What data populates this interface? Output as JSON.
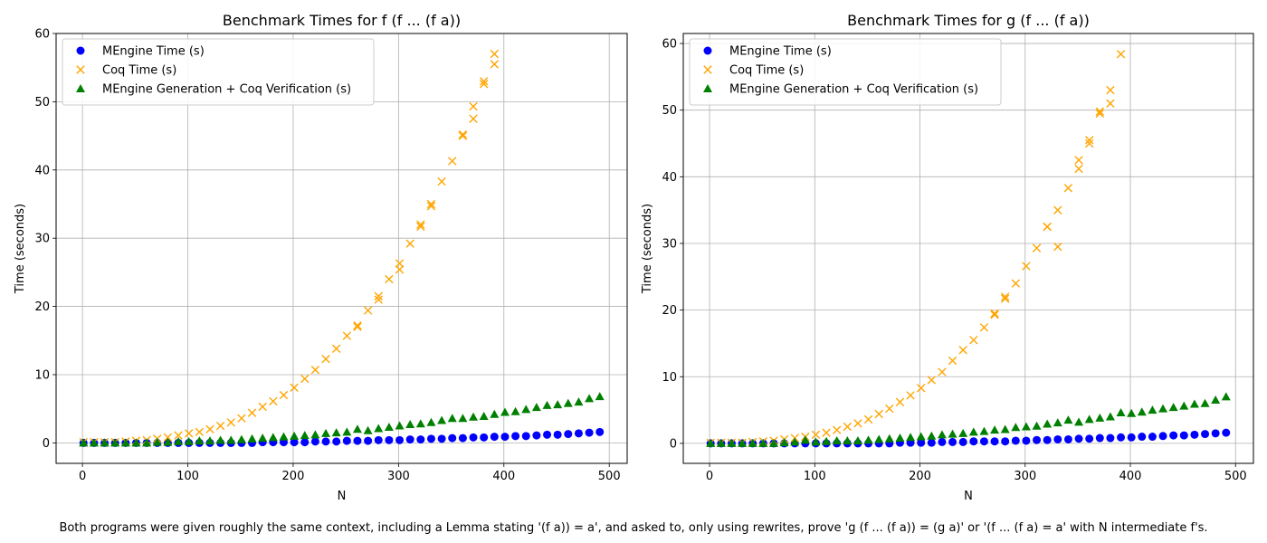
{
  "figure": {
    "caption": "Both programs were given roughly the same context, including a Lemma stating '(f a)) = a', and asked to, only using rewrites, prove 'g (f ... (f a)) = (g a)' or '(f ... (f a) = a' with N intermediate f's."
  },
  "chart_data": [
    {
      "type": "scatter",
      "title": "Benchmark Times for f (f ... (f a))",
      "xlabel": "N",
      "ylabel": "Time (seconds)",
      "xlim": [
        -25,
        517
      ],
      "ylim": [
        -3,
        60
      ],
      "xticks": [
        0,
        100,
        200,
        300,
        400,
        500
      ],
      "yticks": [
        0,
        10,
        20,
        30,
        40,
        50,
        60
      ],
      "grid": true,
      "legend_position": "upper-left",
      "x": [
        1,
        11,
        21,
        31,
        41,
        51,
        61,
        71,
        81,
        91,
        101,
        111,
        121,
        131,
        141,
        151,
        161,
        171,
        181,
        191,
        201,
        211,
        221,
        231,
        241,
        251,
        261,
        271,
        281,
        291,
        301,
        311,
        321,
        331,
        341,
        351,
        361,
        371,
        381,
        391,
        401,
        411,
        421,
        431,
        441,
        451,
        461,
        471,
        481,
        491
      ],
      "series": [
        {
          "name": "MEngine Time (s)",
          "marker": "circle",
          "color": "#0000ff",
          "values": [
            0,
            0,
            0,
            0,
            0,
            0,
            0,
            0,
            0,
            0,
            0,
            0,
            0,
            0,
            0,
            0,
            0,
            0.1,
            0.1,
            0.1,
            0.1,
            0.1,
            0.2,
            0.2,
            0.2,
            0.3,
            0.3,
            0.3,
            0.4,
            0.4,
            0.4,
            0.5,
            0.5,
            0.6,
            0.6,
            0.7,
            0.7,
            0.8,
            0.8,
            0.9,
            0.9,
            1.0,
            1.0,
            1.1,
            1.2,
            1.2,
            1.3,
            1.4,
            1.5,
            1.6
          ]
        },
        {
          "name": "Coq Time (s)",
          "marker": "x",
          "color": "#ffa500",
          "values": [
            0.1,
            0.1,
            0.1,
            0.1,
            0.2,
            0.3,
            0.4,
            0.6,
            0.8,
            1.1,
            1.4,
            1.6,
            2.0,
            2.5,
            3.0,
            3.6,
            4.4,
            5.3,
            6.1,
            7.0,
            8.1,
            9.4,
            10.7,
            12.3,
            13.8,
            15.7,
            17.2,
            19.4,
            21.5,
            24.0,
            26.3,
            29.2,
            32.0,
            35.0,
            38.3,
            41.3,
            45.2,
            49.3,
            53.0,
            57.0,
            null,
            null,
            null,
            null,
            null,
            null,
            null,
            null,
            null,
            null
          ]
        },
        {
          "name": "MEngine Generation + Coq Verification (s)",
          "marker": "triangle",
          "color": "#008000",
          "values": [
            0,
            0,
            0,
            0,
            0,
            0,
            0,
            0.1,
            0.1,
            0.2,
            0.2,
            0.3,
            0.3,
            0.4,
            0.4,
            0.5,
            0.6,
            0.7,
            0.8,
            0.9,
            1.0,
            1.1,
            1.2,
            1.4,
            1.5,
            1.6,
            2.0,
            1.8,
            2.1,
            2.3,
            2.5,
            2.7,
            2.8,
            3.0,
            3.3,
            3.6,
            3.6,
            3.8,
            3.9,
            4.2,
            4.5,
            4.6,
            4.9,
            5.2,
            5.5,
            5.6,
            5.8,
            6.0,
            6.5,
            6.8
          ]
        },
        {
          "name": "Coq Time (s) repeat",
          "marker": "x",
          "color": "#ffa500",
          "in_legend": false,
          "values": [
            null,
            null,
            null,
            null,
            null,
            null,
            null,
            null,
            null,
            null,
            null,
            null,
            null,
            null,
            null,
            null,
            null,
            null,
            null,
            null,
            null,
            null,
            null,
            null,
            null,
            null,
            17.0,
            null,
            21.0,
            null,
            25.4,
            null,
            31.7,
            34.7,
            null,
            null,
            45.0,
            47.5,
            52.6,
            55.5,
            null,
            null,
            null,
            null,
            null,
            null,
            null,
            null,
            null,
            null
          ]
        }
      ]
    },
    {
      "type": "scatter",
      "title": "Benchmark Times for g (f ... (f a))",
      "xlabel": "N",
      "ylabel": "Time (seconds)",
      "xlim": [
        -25,
        517
      ],
      "ylim": [
        -3,
        61.5
      ],
      "xticks": [
        0,
        100,
        200,
        300,
        400,
        500
      ],
      "yticks": [
        0,
        10,
        20,
        30,
        40,
        50,
        60
      ],
      "grid": true,
      "legend_position": "upper-left",
      "x": [
        1,
        11,
        21,
        31,
        41,
        51,
        61,
        71,
        81,
        91,
        101,
        111,
        121,
        131,
        141,
        151,
        161,
        171,
        181,
        191,
        201,
        211,
        221,
        231,
        241,
        251,
        261,
        271,
        281,
        291,
        301,
        311,
        321,
        331,
        341,
        351,
        361,
        371,
        381,
        391,
        401,
        411,
        421,
        431,
        441,
        451,
        461,
        471,
        481,
        491
      ],
      "series": [
        {
          "name": "MEngine Time (s)",
          "marker": "circle",
          "color": "#0000ff",
          "values": [
            0,
            0,
            0,
            0,
            0,
            0,
            0,
            0,
            0,
            0,
            0,
            0,
            0,
            0,
            0,
            0,
            0,
            0,
            0.1,
            0.1,
            0.1,
            0.1,
            0.2,
            0.2,
            0.2,
            0.3,
            0.3,
            0.3,
            0.3,
            0.4,
            0.4,
            0.5,
            0.5,
            0.6,
            0.6,
            0.7,
            0.7,
            0.8,
            0.8,
            0.9,
            0.9,
            1.0,
            1.0,
            1.1,
            1.2,
            1.2,
            1.3,
            1.4,
            1.5,
            1.6
          ]
        },
        {
          "name": "Coq Time (s)",
          "marker": "x",
          "color": "#ffa500",
          "values": [
            0.1,
            0.1,
            0.1,
            0.1,
            0.2,
            0.3,
            0.4,
            0.6,
            0.8,
            1.0,
            1.3,
            1.6,
            2.0,
            2.5,
            3.0,
            3.6,
            4.4,
            5.2,
            6.2,
            7.2,
            8.3,
            9.5,
            10.7,
            12.4,
            14.0,
            15.5,
            17.4,
            19.3,
            21.7,
            24.0,
            26.6,
            29.3,
            32.5,
            35.0,
            38.3,
            41.2,
            45.5,
            49.8,
            53.0,
            58.4,
            null,
            null,
            null,
            null,
            null,
            null,
            null,
            null,
            null,
            null
          ]
        },
        {
          "name": "MEngine Generation + Coq Verification (s)",
          "marker": "triangle",
          "color": "#008000",
          "values": [
            0,
            0,
            0,
            0,
            0,
            0,
            0,
            0.1,
            0.2,
            0.5,
            0.2,
            0.3,
            0.4,
            0.4,
            0.4,
            0.5,
            0.6,
            0.7,
            0.8,
            0.9,
            1.0,
            1.1,
            1.3,
            1.4,
            1.5,
            1.7,
            1.8,
            2.0,
            2.1,
            2.4,
            2.5,
            2.6,
            2.9,
            3.1,
            3.5,
            3.2,
            3.6,
            3.8,
            4.0,
            4.6,
            4.5,
            4.7,
            5.0,
            5.2,
            5.4,
            5.6,
            5.9,
            6.0,
            6.5,
            7.0
          ]
        },
        {
          "name": "Coq Time (s) repeat",
          "marker": "x",
          "color": "#ffa500",
          "in_legend": false,
          "values": [
            null,
            null,
            null,
            null,
            null,
            null,
            null,
            null,
            null,
            null,
            null,
            null,
            null,
            null,
            null,
            null,
            null,
            null,
            null,
            null,
            null,
            null,
            null,
            null,
            null,
            null,
            null,
            19.5,
            22.0,
            null,
            null,
            null,
            32.5,
            29.5,
            null,
            42.5,
            45.0,
            49.5,
            51.0,
            null,
            null,
            null,
            null,
            null,
            null,
            null,
            null,
            null,
            null,
            null
          ]
        }
      ]
    }
  ]
}
